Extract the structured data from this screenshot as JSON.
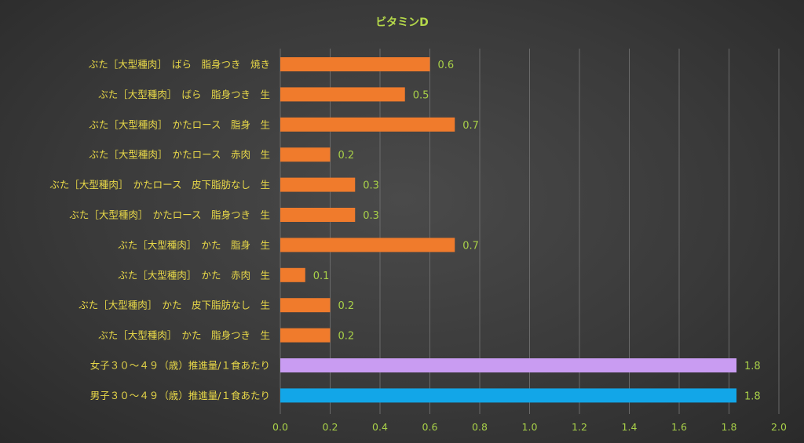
{
  "chart_data": {
    "type": "bar",
    "orientation": "horizontal",
    "title": "ビタミンD",
    "xlabel": "",
    "ylabel": "",
    "xlim": [
      0,
      2.0
    ],
    "xticks": [
      "0.0",
      "0.2",
      "0.4",
      "0.6",
      "0.8",
      "1.0",
      "1.2",
      "1.4",
      "1.6",
      "1.8",
      "2.0"
    ],
    "grid": true,
    "categories": [
      "ぶた［大型種肉］　ばら　脂身つき　焼き",
      "ぶた［大型種肉］　ばら　脂身つき　生",
      "ぶた［大型種肉］　かたロース　脂身　生",
      "ぶた［大型種肉］　かたロース　赤肉　生",
      "ぶた［大型種肉］　かたロース　皮下脂肪なし　生",
      "ぶた［大型種肉］　かたロース　脂身つき　生",
      "ぶた［大型種肉］　かた　脂身　生",
      "ぶた［大型種肉］　かた　赤肉　生",
      "ぶた［大型種肉］　かた　皮下脂肪なし　生",
      "ぶた［大型種肉］　かた　脂身つき　生",
      "女子３０～４９（歳）推進量/１食あたり",
      "男子３０～４９（歳）推進量/１食あたり"
    ],
    "values": [
      0.6,
      0.5,
      0.7,
      0.2,
      0.3,
      0.3,
      0.7,
      0.1,
      0.2,
      0.2,
      1.83,
      1.83
    ],
    "value_labels": [
      "0.6",
      "0.5",
      "0.7",
      "0.2",
      "0.3",
      "0.3",
      "0.7",
      "0.1",
      "0.2",
      "0.2",
      "1.8",
      "1.8"
    ],
    "colors": [
      "#f07b2c",
      "#f07b2c",
      "#f07b2c",
      "#f07b2c",
      "#f07b2c",
      "#f07b2c",
      "#f07b2c",
      "#f07b2c",
      "#f07b2c",
      "#f07b2c",
      "#c99cf2",
      "#12a6e8"
    ]
  }
}
